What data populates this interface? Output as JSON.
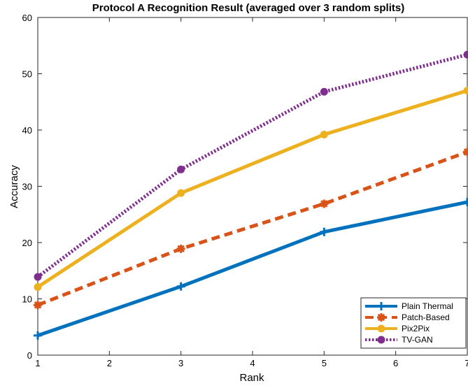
{
  "chart_data": {
    "type": "line",
    "title": "Protocol A Recognition Result (averaged over 3 random splits)",
    "xlabel": "Rank",
    "ylabel": "Accuracy",
    "xlim": [
      1,
      7
    ],
    "ylim": [
      0,
      60
    ],
    "xticks": [
      1,
      2,
      3,
      4,
      5,
      6,
      7
    ],
    "yticks": [
      0,
      10,
      20,
      30,
      40,
      50,
      60
    ],
    "x": [
      1,
      3,
      5,
      7
    ],
    "grid": false,
    "legend_position": "bottom-right",
    "series": [
      {
        "name": "Plain Thermal",
        "values": [
          3.5,
          12.2,
          21.9,
          27.2
        ],
        "color": "#0072BD",
        "dash": "solid",
        "marker": "plus"
      },
      {
        "name": "Patch-Based",
        "values": [
          8.9,
          18.9,
          26.9,
          36.1
        ],
        "color": "#D95319",
        "dash": "dashed",
        "marker": "asterisk"
      },
      {
        "name": "Pix2Pix",
        "values": [
          12.1,
          28.8,
          39.2,
          47.0
        ],
        "color": "#EDB120",
        "dash": "solid",
        "marker": "circle"
      },
      {
        "name": "TV-GAN",
        "values": [
          13.9,
          33.0,
          46.8,
          53.4
        ],
        "color": "#7E2F8E",
        "dash": "dotted",
        "marker": "circle"
      }
    ]
  }
}
